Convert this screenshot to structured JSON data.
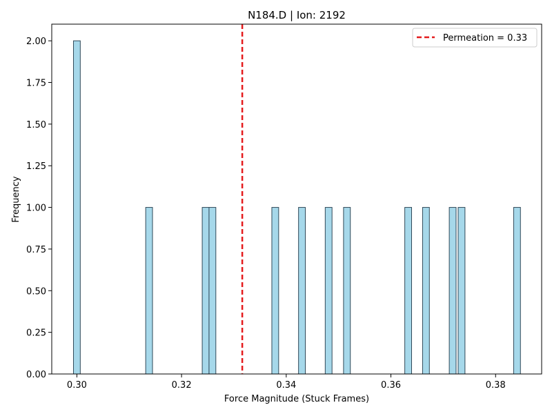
{
  "chart_data": {
    "type": "bar",
    "subtype": "histogram",
    "title": "N184.D | Ion: 2192",
    "xlabel": "Force Magnitude (Stuck Frames)",
    "ylabel": "Frequency",
    "xlim": [
      0.2952,
      0.3888
    ],
    "ylim": [
      0,
      2.1
    ],
    "xticks": [
      "0.30",
      "0.32",
      "0.34",
      "0.36",
      "0.38"
    ],
    "yticks": [
      "0.00",
      "0.25",
      "0.50",
      "0.75",
      "1.00",
      "1.25",
      "1.50",
      "1.75",
      "2.00"
    ],
    "bin_width": 0.0013,
    "bins": [
      {
        "x": 0.3,
        "count": 2
      },
      {
        "x": 0.3138,
        "count": 1
      },
      {
        "x": 0.3246,
        "count": 1
      },
      {
        "x": 0.3259,
        "count": 1
      },
      {
        "x": 0.3379,
        "count": 1
      },
      {
        "x": 0.343,
        "count": 1
      },
      {
        "x": 0.3481,
        "count": 1
      },
      {
        "x": 0.3516,
        "count": 1
      },
      {
        "x": 0.3633,
        "count": 1
      },
      {
        "x": 0.3667,
        "count": 1
      },
      {
        "x": 0.3718,
        "count": 1
      },
      {
        "x": 0.3735,
        "count": 1
      },
      {
        "x": 0.3841,
        "count": 1
      }
    ],
    "reference_line": {
      "x": 0.3316,
      "label": "Permeation = 0.33",
      "color": "#e41a1c",
      "style": "dashed"
    },
    "bar_color": "#a6d8ea",
    "bar_edge_color": "#2f4858",
    "legend": {
      "position": "top-right"
    },
    "grid": false
  }
}
